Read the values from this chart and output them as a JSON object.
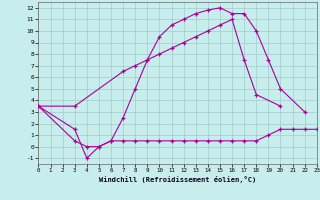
{
  "background_color": "#c8eded",
  "grid_color": "#a0cccc",
  "line_color": "#aa0099",
  "line1": {
    "x": [
      0,
      3,
      4,
      5,
      6,
      7,
      8,
      9,
      10,
      11,
      12,
      13,
      14,
      15,
      16,
      17,
      18,
      19,
      20,
      22
    ],
    "y": [
      3.5,
      1.5,
      -1.0,
      0.0,
      0.5,
      2.5,
      5.0,
      7.5,
      9.5,
      10.5,
      11.0,
      11.5,
      11.8,
      12.0,
      11.5,
      11.5,
      10.0,
      7.5,
      5.0,
      3.0
    ]
  },
  "line2": {
    "x": [
      0,
      3,
      7,
      8,
      9,
      10,
      11,
      12,
      13,
      14,
      15,
      16,
      17,
      18,
      20
    ],
    "y": [
      3.5,
      3.5,
      6.5,
      7.0,
      7.5,
      8.0,
      8.5,
      9.0,
      9.5,
      10.0,
      10.5,
      11.0,
      7.5,
      4.5,
      3.5
    ]
  },
  "line3": {
    "x": [
      0,
      3,
      4,
      5,
      6,
      7,
      8,
      9,
      10,
      11,
      12,
      13,
      14,
      15,
      16,
      17,
      18,
      19,
      20,
      21,
      22,
      23
    ],
    "y": [
      3.5,
      0.5,
      0.0,
      0.0,
      0.5,
      0.5,
      0.5,
      0.5,
      0.5,
      0.5,
      0.5,
      0.5,
      0.5,
      0.5,
      0.5,
      0.5,
      0.5,
      1.0,
      1.5,
      1.5,
      1.5,
      1.5
    ]
  },
  "xlabel": "Windchill (Refroidissement éolien,°C)",
  "xlim": [
    0,
    23
  ],
  "ylim": [
    -1.5,
    12.5
  ],
  "xticks": [
    0,
    1,
    2,
    3,
    4,
    5,
    6,
    7,
    8,
    9,
    10,
    11,
    12,
    13,
    14,
    15,
    16,
    17,
    18,
    19,
    20,
    21,
    22,
    23
  ],
  "yticks": [
    -1,
    0,
    1,
    2,
    3,
    4,
    5,
    6,
    7,
    8,
    9,
    10,
    11,
    12
  ]
}
